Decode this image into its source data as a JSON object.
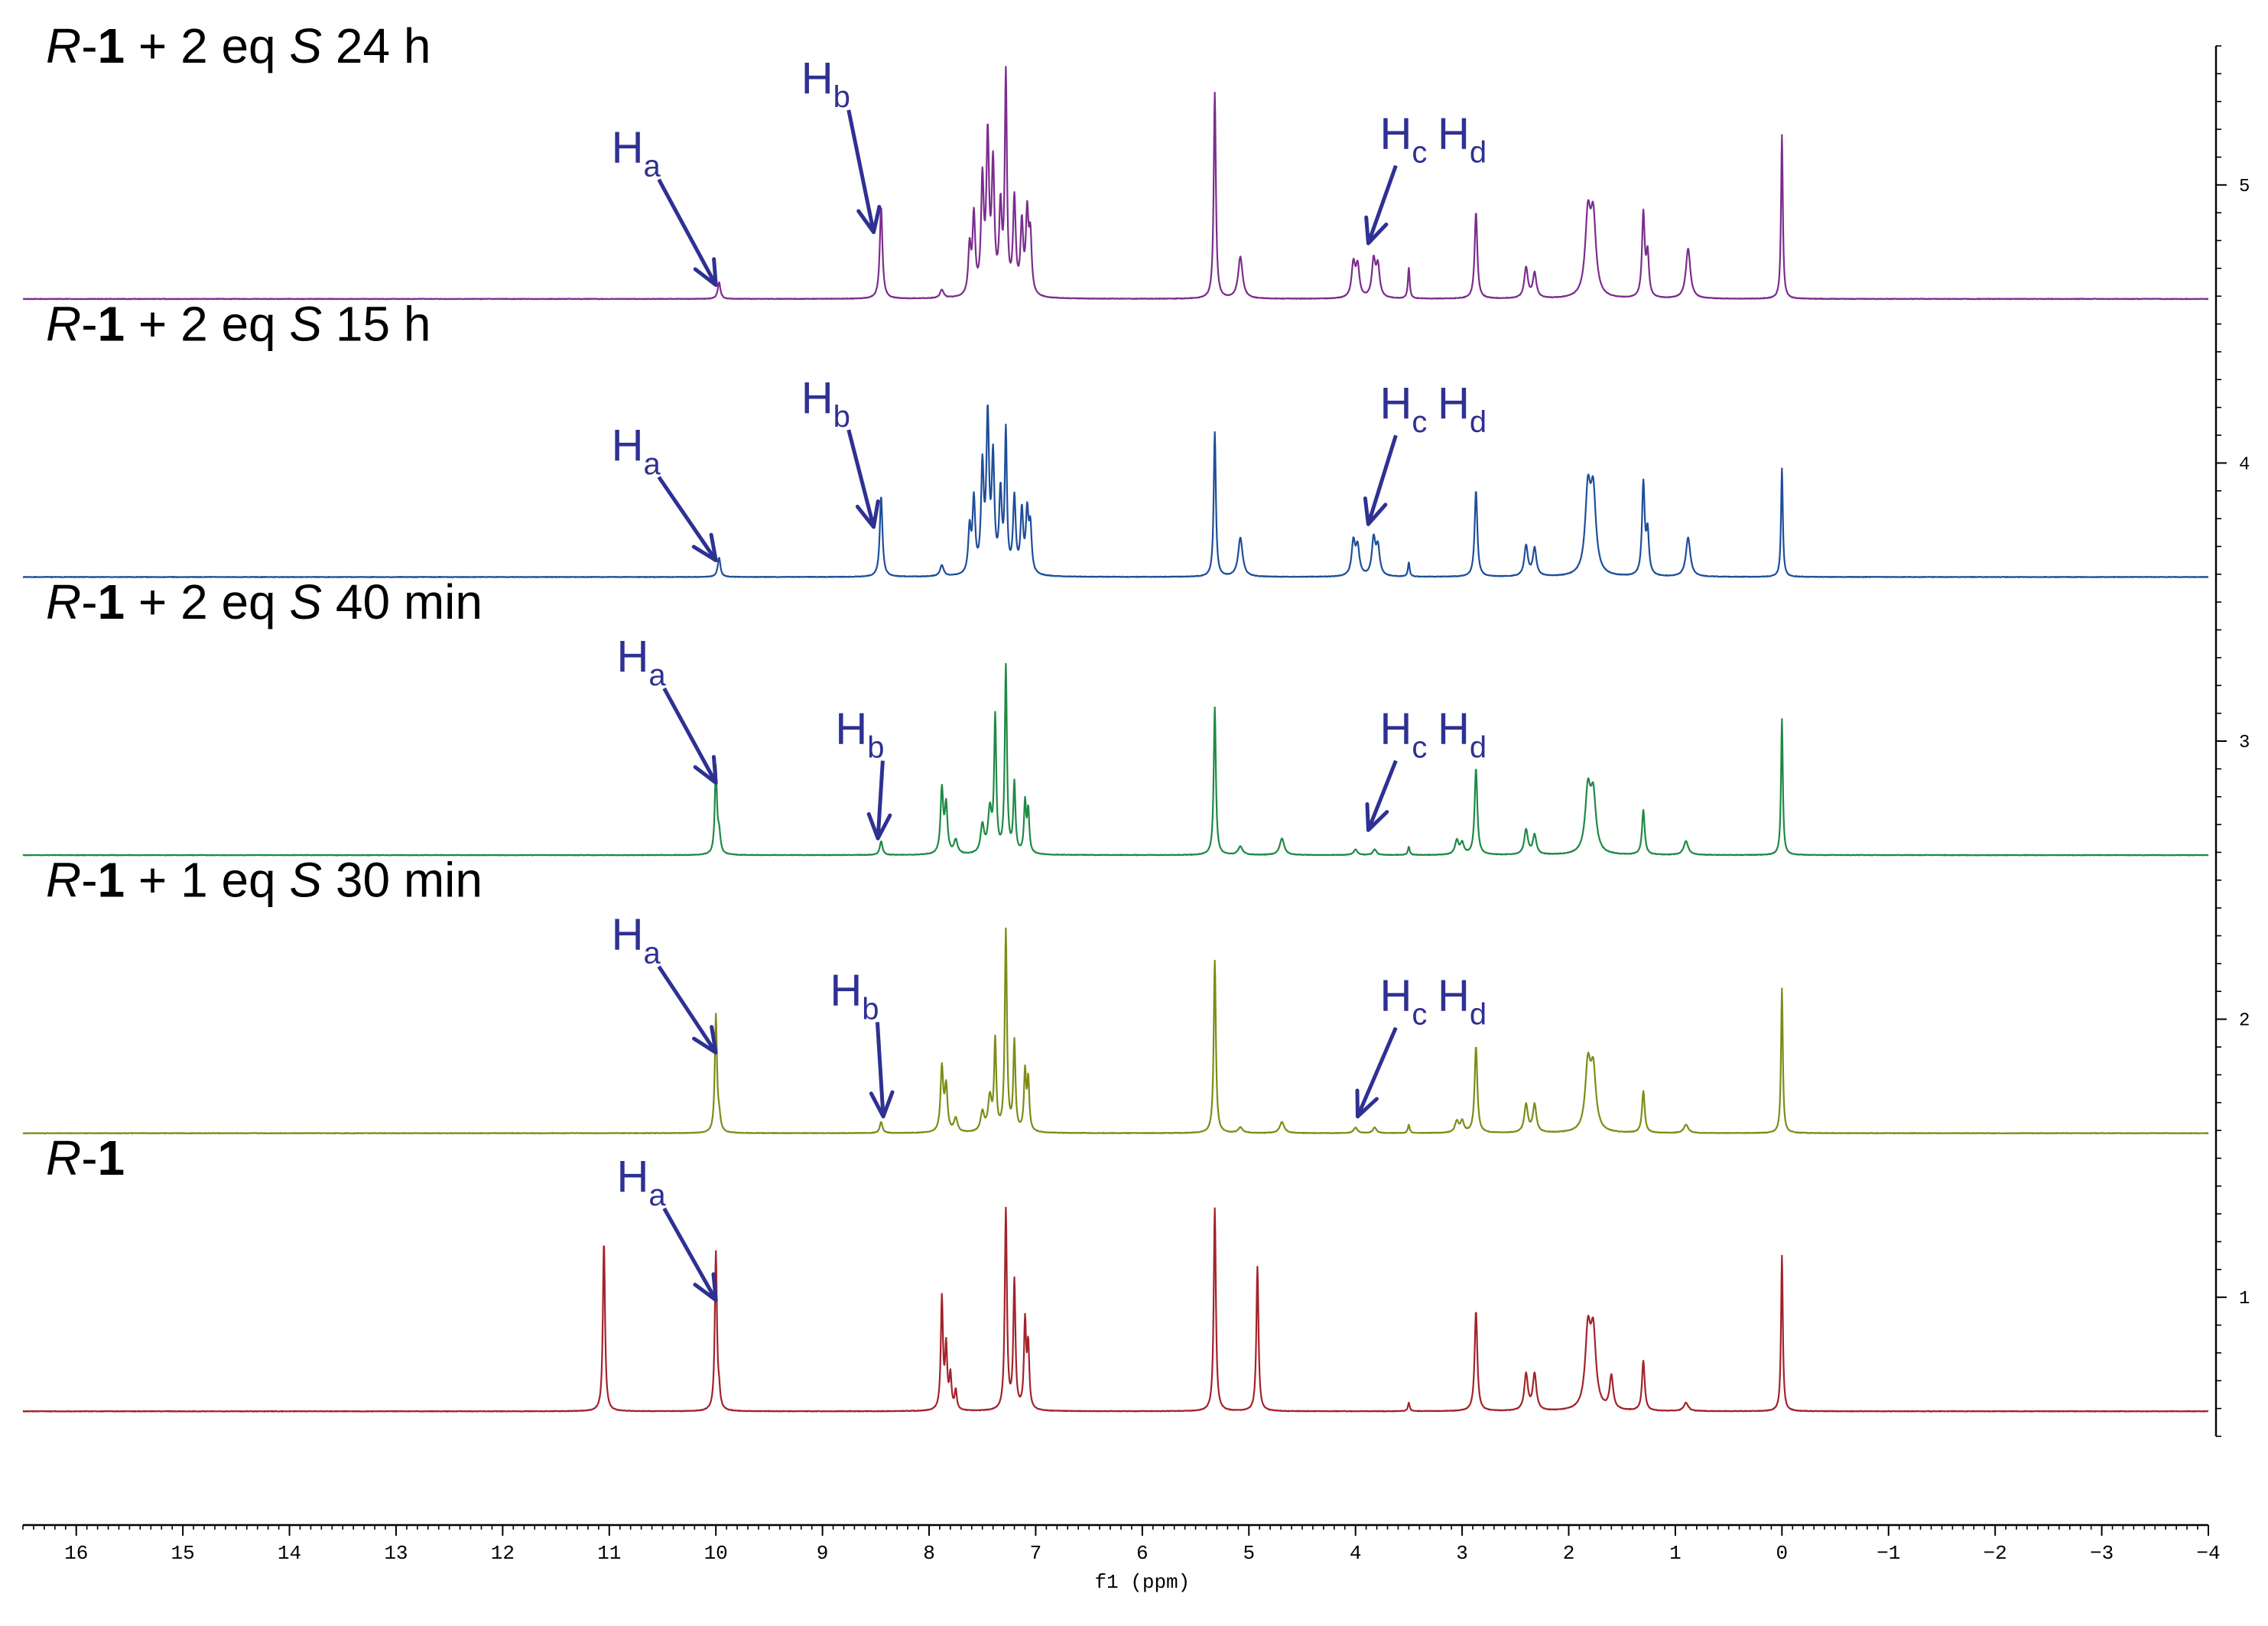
{
  "chart_data": {
    "type": "line",
    "title": "",
    "xlabel": "f1 (ppm)",
    "ylabel": "",
    "xlim": [
      16.5,
      -4.0
    ],
    "ylim": [
      0.5,
      5.5
    ],
    "x_ticks": [
      "16",
      "15",
      "14",
      "13",
      "12",
      "11",
      "10",
      "9",
      "8",
      "7",
      "6",
      "5",
      "4",
      "3",
      "2",
      "1",
      "0",
      "−1",
      "−2",
      "−3",
      "−4"
    ],
    "x_tick_values": [
      16,
      15,
      14,
      13,
      12,
      11,
      10,
      9,
      8,
      7,
      6,
      5,
      4,
      3,
      2,
      1,
      0,
      -1,
      -2,
      -3,
      -4
    ],
    "y_ticks": [
      "1",
      "2",
      "3",
      "4",
      "5"
    ],
    "y_tick_values": [
      1,
      2,
      3,
      4,
      5
    ],
    "series": [
      {
        "name": "R-1 + 2 eq S 24 h",
        "label_parts": [
          [
            "R",
            "i"
          ],
          [
            "-",
            "n"
          ],
          [
            "1",
            "b"
          ],
          [
            " + 2 eq ",
            "n"
          ],
          [
            "S",
            "i"
          ],
          [
            "  24 h",
            "n"
          ]
        ],
        "color": "#7B2D8E",
        "baseline": 4.59,
        "peaks": [
          [
            9.97,
            0.06,
            0.015
          ],
          [
            8.45,
            0.33,
            0.015
          ],
          [
            7.88,
            0.03,
            0.02
          ],
          [
            7.62,
            0.17,
            0.015
          ],
          [
            7.58,
            0.28,
            0.015
          ],
          [
            7.5,
            0.4,
            0.015
          ],
          [
            7.45,
            0.55,
            0.015
          ],
          [
            7.4,
            0.45,
            0.015
          ],
          [
            7.33,
            0.3,
            0.015
          ],
          [
            7.28,
            0.78,
            0.012
          ],
          [
            7.2,
            0.34,
            0.015
          ],
          [
            7.13,
            0.25,
            0.015
          ],
          [
            7.08,
            0.28,
            0.015
          ],
          [
            7.05,
            0.2,
            0.015
          ],
          [
            5.32,
            0.74,
            0.012
          ],
          [
            5.08,
            0.15,
            0.025
          ],
          [
            4.02,
            0.12,
            0.02
          ],
          [
            3.98,
            0.11,
            0.02
          ],
          [
            3.83,
            0.13,
            0.02
          ],
          [
            3.79,
            0.11,
            0.02
          ],
          [
            3.5,
            0.11,
            0.01
          ],
          [
            2.87,
            0.31,
            0.015
          ],
          [
            2.4,
            0.11,
            0.02
          ],
          [
            2.32,
            0.09,
            0.02
          ],
          [
            1.82,
            0.28,
            0.03
          ],
          [
            1.77,
            0.27,
            0.03
          ],
          [
            1.3,
            0.3,
            0.015
          ],
          [
            1.26,
            0.15,
            0.015
          ],
          [
            0.88,
            0.18,
            0.025
          ],
          [
            0.0,
            0.59,
            0.01
          ]
        ],
        "annotations": [
          {
            "text": "H",
            "sub": "a",
            "ppm": 10.0,
            "y": 4.64,
            "label_ppm": 10.75,
            "label_y": 5.08
          },
          {
            "text": "H",
            "sub": "b",
            "ppm": 8.52,
            "y": 4.83,
            "label_ppm": 8.97,
            "label_y": 5.33
          },
          {
            "text": "H",
            "sub": "c",
            "ppm": 3.88,
            "y": 4.79,
            "label_ppm": 3.55,
            "label_y": 5.13
          },
          {
            "text": "H",
            "sub": "d",
            "ppm": null,
            "y": null,
            "label_ppm": 3.0,
            "label_y": 5.13
          }
        ]
      },
      {
        "name": "R-1 + 2 eq S 15 h",
        "label_parts": [
          [
            "R",
            "i"
          ],
          [
            "-",
            "n"
          ],
          [
            "1",
            "b"
          ],
          [
            " + 2 eq ",
            "n"
          ],
          [
            "S",
            "i"
          ],
          [
            "  15 h",
            "n"
          ]
        ],
        "color": "#1E4E9A",
        "baseline": 3.59,
        "peaks": [
          [
            9.97,
            0.07,
            0.015
          ],
          [
            8.45,
            0.29,
            0.015
          ],
          [
            7.88,
            0.04,
            0.02
          ],
          [
            7.62,
            0.16,
            0.015
          ],
          [
            7.58,
            0.26,
            0.015
          ],
          [
            7.5,
            0.37,
            0.015
          ],
          [
            7.45,
            0.55,
            0.015
          ],
          [
            7.4,
            0.4,
            0.015
          ],
          [
            7.33,
            0.28,
            0.015
          ],
          [
            7.28,
            0.5,
            0.012
          ],
          [
            7.2,
            0.27,
            0.015
          ],
          [
            7.13,
            0.22,
            0.015
          ],
          [
            7.08,
            0.21,
            0.015
          ],
          [
            7.05,
            0.16,
            0.015
          ],
          [
            5.32,
            0.52,
            0.012
          ],
          [
            5.08,
            0.14,
            0.025
          ],
          [
            4.02,
            0.12,
            0.02
          ],
          [
            3.98,
            0.1,
            0.02
          ],
          [
            3.83,
            0.13,
            0.02
          ],
          [
            3.79,
            0.1,
            0.02
          ],
          [
            3.5,
            0.05,
            0.01
          ],
          [
            2.87,
            0.31,
            0.015
          ],
          [
            2.4,
            0.11,
            0.02
          ],
          [
            2.32,
            0.1,
            0.02
          ],
          [
            1.82,
            0.29,
            0.03
          ],
          [
            1.77,
            0.28,
            0.03
          ],
          [
            1.3,
            0.33,
            0.015
          ],
          [
            1.26,
            0.15,
            0.015
          ],
          [
            0.88,
            0.14,
            0.025
          ],
          [
            0.0,
            0.39,
            0.01
          ]
        ],
        "annotations": [
          {
            "text": "H",
            "sub": "a",
            "ppm": 10.0,
            "y": 3.65,
            "label_ppm": 10.75,
            "label_y": 4.01
          },
          {
            "text": "H",
            "sub": "b",
            "ppm": 8.52,
            "y": 3.77,
            "label_ppm": 8.97,
            "label_y": 4.18
          },
          {
            "text": "H",
            "sub": "c",
            "ppm": 3.88,
            "y": 3.78,
            "label_ppm": 3.55,
            "label_y": 4.16
          },
          {
            "text": "H",
            "sub": "d",
            "ppm": null,
            "y": null,
            "label_ppm": 3.0,
            "label_y": 4.16
          }
        ]
      },
      {
        "name": "R-1 + 2 eq S 40 min",
        "label_parts": [
          [
            "R",
            "i"
          ],
          [
            "-",
            "n"
          ],
          [
            "1",
            "b"
          ],
          [
            " + 2 eq ",
            "n"
          ],
          [
            "S",
            "i"
          ],
          [
            "  40 min",
            "n"
          ]
        ],
        "color": "#1F8A45",
        "baseline": 2.59,
        "peaks": [
          [
            10.0,
            0.31,
            0.012
          ],
          [
            9.97,
            0.07,
            0.015
          ],
          [
            8.45,
            0.05,
            0.015
          ],
          [
            7.88,
            0.23,
            0.015
          ],
          [
            7.84,
            0.17,
            0.015
          ],
          [
            7.75,
            0.05,
            0.02
          ],
          [
            7.5,
            0.1,
            0.02
          ],
          [
            7.43,
            0.15,
            0.02
          ],
          [
            7.38,
            0.48,
            0.012
          ],
          [
            7.28,
            0.67,
            0.012
          ],
          [
            7.2,
            0.25,
            0.012
          ],
          [
            7.1,
            0.18,
            0.012
          ],
          [
            7.07,
            0.15,
            0.012
          ],
          [
            5.32,
            0.53,
            0.012
          ],
          [
            5.08,
            0.03,
            0.025
          ],
          [
            4.69,
            0.06,
            0.025
          ],
          [
            4.0,
            0.02,
            0.02
          ],
          [
            3.82,
            0.02,
            0.02
          ],
          [
            3.5,
            0.03,
            0.01
          ],
          [
            3.05,
            0.05,
            0.02
          ],
          [
            3.0,
            0.04,
            0.02
          ],
          [
            2.87,
            0.31,
            0.015
          ],
          [
            2.4,
            0.09,
            0.02
          ],
          [
            2.32,
            0.07,
            0.02
          ],
          [
            1.82,
            0.22,
            0.03
          ],
          [
            1.77,
            0.2,
            0.03
          ],
          [
            1.3,
            0.16,
            0.015
          ],
          [
            0.9,
            0.05,
            0.025
          ],
          [
            0.0,
            0.49,
            0.01
          ]
        ],
        "annotations": [
          {
            "text": "H",
            "sub": "a",
            "ppm": 10.0,
            "y": 2.85,
            "label_ppm": 10.7,
            "label_y": 3.25
          },
          {
            "text": "H",
            "sub": "b",
            "ppm": 8.48,
            "y": 2.65,
            "label_ppm": 8.65,
            "label_y": 2.99
          },
          {
            "text": "H",
            "sub": "c",
            "ppm": 3.88,
            "y": 2.68,
            "label_ppm": 3.55,
            "label_y": 2.99
          },
          {
            "text": "H",
            "sub": "d",
            "ppm": null,
            "y": null,
            "label_ppm": 3.0,
            "label_y": 2.99
          }
        ]
      },
      {
        "name": "R-1 + 1 eq S 30 min",
        "label_parts": [
          [
            "R",
            "i"
          ],
          [
            "-",
            "n"
          ],
          [
            "1",
            "b"
          ],
          [
            " + 1 eq ",
            "n"
          ],
          [
            "S",
            "i"
          ],
          [
            "  30 min",
            "n"
          ]
        ],
        "color": "#7E8C17",
        "baseline": 1.59,
        "peaks": [
          [
            10.0,
            0.42,
            0.012
          ],
          [
            9.97,
            0.05,
            0.015
          ],
          [
            8.45,
            0.04,
            0.015
          ],
          [
            7.88,
            0.23,
            0.015
          ],
          [
            7.84,
            0.16,
            0.015
          ],
          [
            7.75,
            0.05,
            0.02
          ],
          [
            7.5,
            0.07,
            0.02
          ],
          [
            7.43,
            0.12,
            0.02
          ],
          [
            7.38,
            0.32,
            0.012
          ],
          [
            7.28,
            0.72,
            0.012
          ],
          [
            7.2,
            0.32,
            0.012
          ],
          [
            7.1,
            0.21,
            0.012
          ],
          [
            7.07,
            0.18,
            0.012
          ],
          [
            5.32,
            0.62,
            0.012
          ],
          [
            5.08,
            0.02,
            0.025
          ],
          [
            4.69,
            0.04,
            0.025
          ],
          [
            4.0,
            0.02,
            0.02
          ],
          [
            3.82,
            0.02,
            0.02
          ],
          [
            3.5,
            0.03,
            0.01
          ],
          [
            3.05,
            0.04,
            0.02
          ],
          [
            3.0,
            0.04,
            0.02
          ],
          [
            2.87,
            0.31,
            0.015
          ],
          [
            2.4,
            0.1,
            0.02
          ],
          [
            2.32,
            0.1,
            0.02
          ],
          [
            1.82,
            0.23,
            0.03
          ],
          [
            1.77,
            0.21,
            0.03
          ],
          [
            1.3,
            0.15,
            0.015
          ],
          [
            0.9,
            0.03,
            0.025
          ],
          [
            0.0,
            0.52,
            0.01
          ]
        ],
        "annotations": [
          {
            "text": "H",
            "sub": "a",
            "ppm": 10.0,
            "y": 1.88,
            "label_ppm": 10.75,
            "label_y": 2.25
          },
          {
            "text": "H",
            "sub": "b",
            "ppm": 8.43,
            "y": 1.65,
            "label_ppm": 8.7,
            "label_y": 2.05
          },
          {
            "text": "H",
            "sub": "c",
            "ppm": 3.98,
            "y": 1.65,
            "label_ppm": 3.55,
            "label_y": 2.03
          },
          {
            "text": "H",
            "sub": "d",
            "ppm": null,
            "y": null,
            "label_ppm": 3.0,
            "label_y": 2.03
          }
        ]
      },
      {
        "name": "R-1",
        "label_parts": [
          [
            "R",
            "i"
          ],
          [
            "-",
            "n"
          ],
          [
            "1",
            "b"
          ]
        ],
        "color": "#A3232A",
        "baseline": 0.59,
        "peaks": [
          [
            11.05,
            0.61,
            0.012
          ],
          [
            10.0,
            0.57,
            0.012
          ],
          [
            9.97,
            0.05,
            0.012
          ],
          [
            7.88,
            0.4,
            0.012
          ],
          [
            7.84,
            0.22,
            0.012
          ],
          [
            7.8,
            0.12,
            0.012
          ],
          [
            7.75,
            0.07,
            0.012
          ],
          [
            7.28,
            0.72,
            0.012
          ],
          [
            7.2,
            0.46,
            0.012
          ],
          [
            7.1,
            0.31,
            0.012
          ],
          [
            7.07,
            0.22,
            0.012
          ],
          [
            5.32,
            0.73,
            0.012
          ],
          [
            4.92,
            0.52,
            0.012
          ],
          [
            3.5,
            0.03,
            0.01
          ],
          [
            2.87,
            0.36,
            0.015
          ],
          [
            2.4,
            0.13,
            0.02
          ],
          [
            2.32,
            0.13,
            0.02
          ],
          [
            1.82,
            0.27,
            0.03
          ],
          [
            1.77,
            0.26,
            0.03
          ],
          [
            1.6,
            0.12,
            0.02
          ],
          [
            1.3,
            0.18,
            0.015
          ],
          [
            0.9,
            0.03,
            0.025
          ],
          [
            0.0,
            0.56,
            0.01
          ]
        ],
        "annotations": [
          {
            "text": "H",
            "sub": "a",
            "ppm": 10.0,
            "y": 0.99,
            "label_ppm": 10.7,
            "label_y": 1.38
          }
        ]
      }
    ]
  }
}
